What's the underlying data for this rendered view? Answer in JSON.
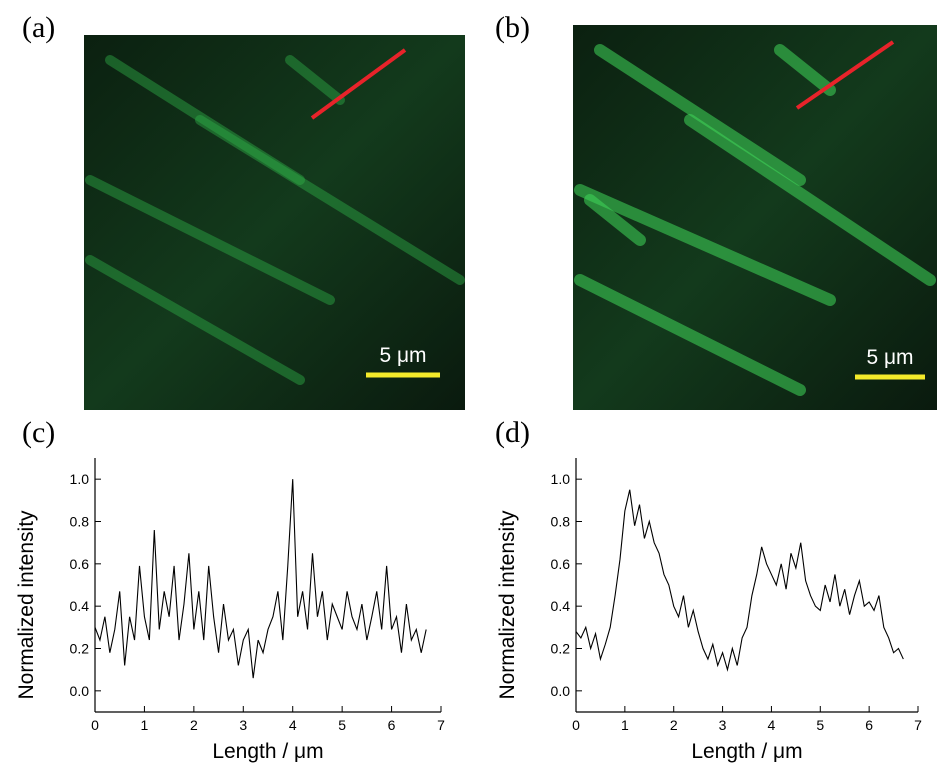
{
  "images": [
    {
      "label": "(a)",
      "scale_bar": "5 μm"
    },
    {
      "label": "(b)",
      "scale_bar": "5 μm"
    }
  ],
  "chart_data": [
    {
      "type": "line",
      "panel_label": "(c)",
      "xlabel": "Length / μm",
      "ylabel": "Normalized intensity",
      "color": "#000000",
      "x": [
        0,
        0.1,
        0.2,
        0.3,
        0.4,
        0.5,
        0.6,
        0.7,
        0.8,
        0.9,
        1.0,
        1.1,
        1.2,
        1.3,
        1.4,
        1.5,
        1.6,
        1.7,
        1.8,
        1.9,
        2.0,
        2.1,
        2.2,
        2.3,
        2.4,
        2.5,
        2.6,
        2.7,
        2.8,
        2.9,
        3.0,
        3.1,
        3.2,
        3.3,
        3.4,
        3.5,
        3.6,
        3.7,
        3.8,
        3.9,
        4.0,
        4.1,
        4.2,
        4.3,
        4.4,
        4.5,
        4.6,
        4.7,
        4.8,
        4.9,
        5.0,
        5.1,
        5.2,
        5.3,
        5.4,
        5.5,
        5.6,
        5.7,
        5.8,
        5.9,
        6.0,
        6.1,
        6.2,
        6.3,
        6.4,
        6.5,
        6.6,
        6.7
      ],
      "values": [
        0.3,
        0.24,
        0.35,
        0.18,
        0.29,
        0.47,
        0.12,
        0.35,
        0.24,
        0.59,
        0.35,
        0.24,
        0.76,
        0.29,
        0.47,
        0.35,
        0.59,
        0.24,
        0.41,
        0.65,
        0.29,
        0.47,
        0.24,
        0.59,
        0.35,
        0.18,
        0.41,
        0.24,
        0.29,
        0.12,
        0.24,
        0.29,
        0.06,
        0.24,
        0.18,
        0.29,
        0.35,
        0.47,
        0.24,
        0.59,
        1.0,
        0.35,
        0.47,
        0.29,
        0.65,
        0.35,
        0.47,
        0.24,
        0.41,
        0.35,
        0.29,
        0.47,
        0.35,
        0.29,
        0.41,
        0.24,
        0.35,
        0.47,
        0.29,
        0.59,
        0.29,
        0.35,
        0.18,
        0.41,
        0.24,
        0.29,
        0.18,
        0.29
      ],
      "xlim": [
        0,
        7
      ],
      "xticks": [
        0,
        1,
        2,
        3,
        4,
        5,
        6,
        7
      ],
      "ylim": [
        -0.1,
        1.1
      ],
      "yticks": [
        {
          "value": 0,
          "label": "0.0"
        },
        0.2,
        0.4,
        0.6,
        0.8,
        {
          "value": 1,
          "label": "1.0"
        }
      ]
    },
    {
      "type": "line",
      "panel_label": "(d)",
      "xlabel": "Length / μm",
      "ylabel": "Normalized intensity",
      "color": "#000000",
      "x": [
        0,
        0.1,
        0.2,
        0.3,
        0.4,
        0.5,
        0.6,
        0.7,
        0.8,
        0.9,
        1.0,
        1.1,
        1.2,
        1.3,
        1.4,
        1.5,
        1.6,
        1.7,
        1.8,
        1.9,
        2.0,
        2.1,
        2.2,
        2.3,
        2.4,
        2.5,
        2.6,
        2.7,
        2.8,
        2.9,
        3.0,
        3.1,
        3.2,
        3.3,
        3.4,
        3.5,
        3.6,
        3.7,
        3.8,
        3.9,
        4.0,
        4.1,
        4.2,
        4.3,
        4.4,
        4.5,
        4.6,
        4.7,
        4.8,
        4.9,
        5.0,
        5.1,
        5.2,
        5.3,
        5.4,
        5.5,
        5.6,
        5.7,
        5.8,
        5.9,
        6.0,
        6.1,
        6.2,
        6.3,
        6.4,
        6.5,
        6.6,
        6.7
      ],
      "values": [
        0.28,
        0.25,
        0.3,
        0.2,
        0.27,
        0.15,
        0.22,
        0.3,
        0.45,
        0.62,
        0.85,
        0.95,
        0.78,
        0.88,
        0.72,
        0.8,
        0.7,
        0.65,
        0.55,
        0.5,
        0.4,
        0.35,
        0.45,
        0.3,
        0.38,
        0.28,
        0.2,
        0.15,
        0.22,
        0.12,
        0.18,
        0.1,
        0.2,
        0.12,
        0.25,
        0.3,
        0.45,
        0.55,
        0.68,
        0.6,
        0.55,
        0.5,
        0.6,
        0.48,
        0.65,
        0.58,
        0.7,
        0.52,
        0.45,
        0.4,
        0.38,
        0.5,
        0.42,
        0.55,
        0.4,
        0.48,
        0.36,
        0.45,
        0.52,
        0.4,
        0.42,
        0.38,
        0.45,
        0.3,
        0.25,
        0.18,
        0.2,
        0.15
      ],
      "xlim": [
        0,
        7
      ],
      "xticks": [
        0,
        1,
        2,
        3,
        4,
        5,
        6,
        7
      ],
      "ylim": [
        -0.1,
        1.1
      ],
      "yticks": [
        {
          "value": 0,
          "label": "0.0"
        },
        0.2,
        0.4,
        0.6,
        0.8,
        {
          "value": 1,
          "label": "1.0"
        }
      ]
    }
  ]
}
